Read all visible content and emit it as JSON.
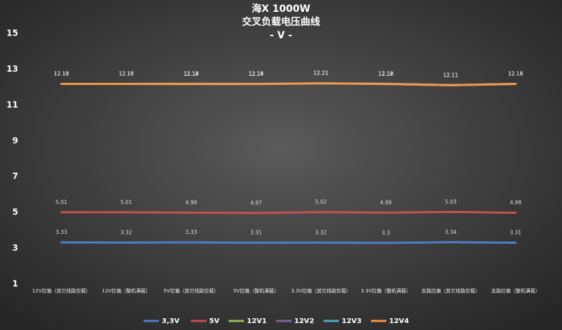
{
  "chart_data": {
    "type": "line",
    "title": [
      "海X 1000W",
      "交叉负载电压曲线",
      "- V -"
    ],
    "categories": [
      "12V拉偏（其它线路空载）",
      "12V拉偏（整机满载）",
      "5V拉偏（其它线路空载）",
      "5V拉偏（整机满载）",
      "3.3V拉偏（其它线路空载）",
      "3.3V拉偏（整机满载）",
      "支路拉偏（其它线路空载）",
      "支路拉偏（整机满载）"
    ],
    "series": [
      {
        "name": "3,3V",
        "color": "#4f7fc9",
        "values": [
          3.33,
          3.32,
          3.33,
          3.31,
          3.32,
          3.3,
          3.34,
          3.31
        ]
      },
      {
        "name": "5V",
        "color": "#c9514f",
        "values": [
          5.01,
          5.01,
          4.99,
          4.97,
          5.02,
          4.99,
          5.03,
          4.98
        ]
      },
      {
        "name": "12V1",
        "color": "#9bbb59",
        "values": [
          12.18,
          12.18,
          12.17,
          12.18,
          12.21,
          12.17,
          12.11,
          12.18
        ]
      },
      {
        "name": "12V2",
        "color": "#8064a2",
        "values": [
          12.18,
          12.18,
          12.18,
          12.19,
          12.21,
          12.18,
          12.11,
          12.18
        ]
      },
      {
        "name": "12V3",
        "color": "#4bacc6",
        "values": [
          12.18,
          12.18,
          12.19,
          12.18,
          12.21,
          12.19,
          12.11,
          12.18
        ]
      },
      {
        "name": "12V4",
        "color": "#f79646",
        "values": [
          12.18,
          12.18,
          12.18,
          12.17,
          12.21,
          12.18,
          12.11,
          12.18
        ]
      }
    ],
    "ylim": [
      1,
      15
    ],
    "yticks": [
      1,
      3,
      5,
      7,
      9,
      11,
      13,
      15
    ],
    "grid": false,
    "legend": "bottom"
  }
}
